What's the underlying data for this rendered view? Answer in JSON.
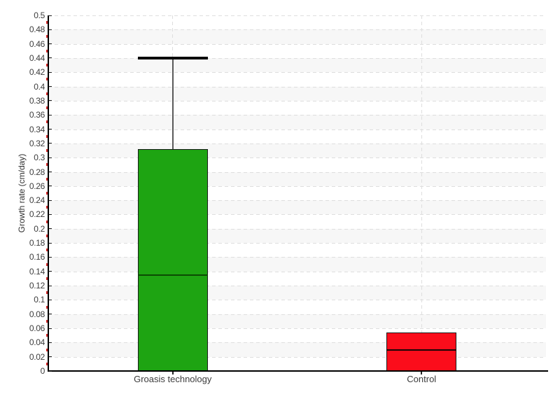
{
  "figure": {
    "background": "#ffffff"
  },
  "chart_data": {
    "type": "boxplot",
    "title": "",
    "ylabel": "Growth rate (cm/day)",
    "xlabel": "",
    "categories": [
      "Groasis technology",
      "Control"
    ],
    "series": [
      {
        "name": "Groasis technology",
        "fill": "#1ea412",
        "median_color": "#0b4b03",
        "low": 0,
        "q1": 0,
        "median": 0.135,
        "q3": 0.312,
        "high": 0.44
      },
      {
        "name": "Control",
        "fill": "#fb0d1b",
        "median_color": "#1a0505",
        "low": 0,
        "q1": 0,
        "median": 0.03,
        "q3": 0.054,
        "high": 0.054
      }
    ],
    "ylim": [
      0,
      0.5
    ],
    "ytick_step": 0.02,
    "yminor_step": 0.01,
    "ytick_labels": [
      "0",
      "0.02",
      "0.04",
      "0.06",
      "0.08",
      "0.1",
      "0.12",
      "0.14",
      "0.16",
      "0.18",
      "0.2",
      "0.22",
      "0.24",
      "0.26",
      "0.28",
      "0.3",
      "0.32",
      "0.34",
      "0.36",
      "0.38",
      "0.4",
      "0.42",
      "0.44",
      "0.46",
      "0.48",
      "0.5"
    ],
    "legend_position": "none",
    "grid": "horizontal dashed every 0.02, vertical dashed at category centers, alternating background bands",
    "colors": {
      "band": "#f7f7f7",
      "gridline": "#dedede",
      "axis": "#000000",
      "major_tick": "#222222",
      "minor_tick": "#d22a2a",
      "tick_label": "#3c3c3c",
      "whisker_line": "#5a5a5a",
      "whisker_cap": "#0a0a0a",
      "box_border": "#1a1a1a"
    }
  }
}
